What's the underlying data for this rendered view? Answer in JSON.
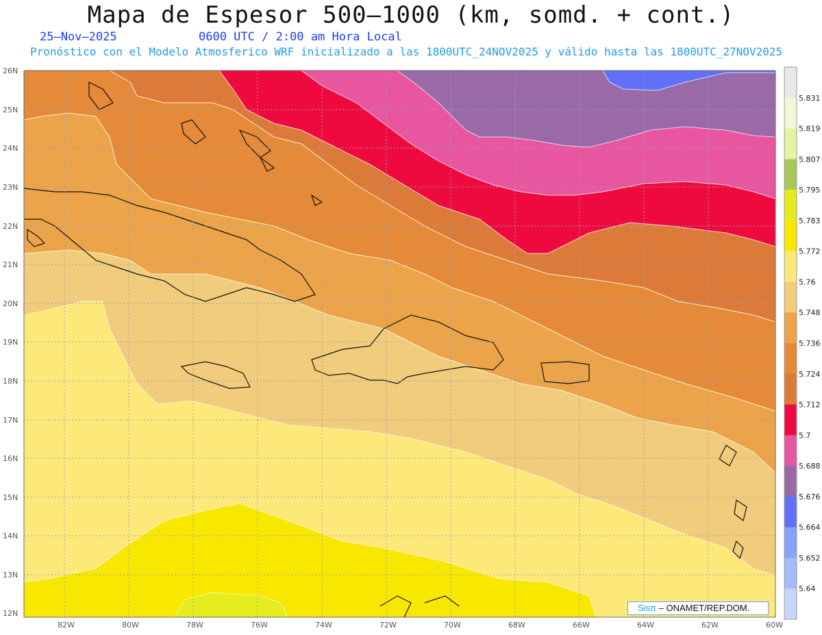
{
  "header": {
    "title": "Mapa de Espesor 500–1000 (km, somd. + cont.)",
    "date": "25–Nov–2025",
    "utc_time": "0600 UTC / 2:00 am Hora Local",
    "subtitle": "Pronóstico con el Modelo Atmosferico WRF inicializado a las 1800UTC_24NOV2025 y válido hasta las  1800UTC_27NOV2025"
  },
  "map": {
    "lat_labels": [
      "26N",
      "25N",
      "24N",
      "23N",
      "22N",
      "21N",
      "20N",
      "19N",
      "18N",
      "17N",
      "16N",
      "15N",
      "14N",
      "13N",
      "12N"
    ],
    "lon_labels": [
      "82W",
      "80W",
      "78W",
      "76W",
      "74W",
      "72W",
      "70W",
      "68W",
      "66W",
      "64W",
      "62W",
      "60W"
    ]
  },
  "colorbar": {
    "labels": [
      "5.831",
      "5.819",
      "5.807",
      "5.795",
      "5.783",
      "5.772",
      "5.76",
      "5.748",
      "5.736",
      "5.724",
      "5.712",
      "5.7",
      "5.688",
      "5.676",
      "5.664",
      "5.652",
      "5.64"
    ],
    "colors": [
      "#e8e8e8",
      "#f4f6d8",
      "#e2f5a0",
      "#a8c85a",
      "#e4ec1e",
      "#f8e800",
      "#fde97a",
      "#f1cc7c",
      "#eba44a",
      "#e48a38",
      "#dc7a3a",
      "#ee0a3e",
      "#e856a0",
      "#9a6aa6",
      "#6070f8",
      "#86a4fa",
      "#a4bcfc",
      "#c6d4fe"
    ]
  },
  "credit": {
    "sis": "Sisπ",
    "org": "– ONAMET/REP.DOM."
  }
}
